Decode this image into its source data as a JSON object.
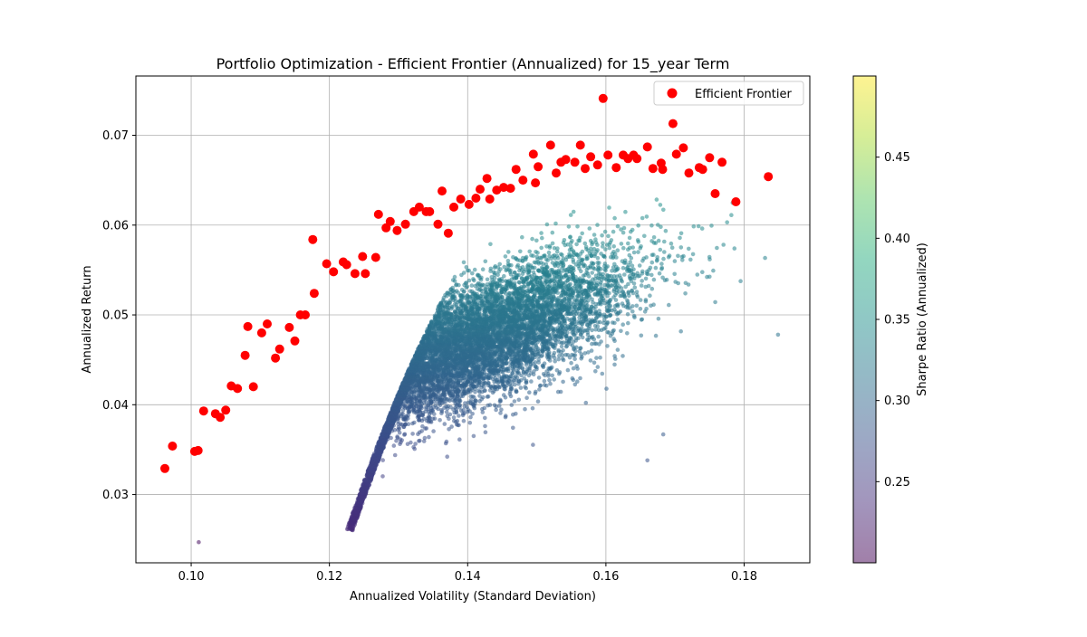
{
  "chart_data": {
    "type": "scatter",
    "title": "Portfolio Optimization - Efficient Frontier (Annualized) for 15_year Term",
    "xlabel": "Annualized Volatility (Standard Deviation)",
    "ylabel": "Annualized Return",
    "xlim": [
      0.092,
      0.1895
    ],
    "ylim": [
      0.0224,
      0.0766
    ],
    "xticks": [
      0.1,
      0.12,
      0.14,
      0.16,
      0.18
    ],
    "xtick_labels": [
      "0.10",
      "0.12",
      "0.14",
      "0.16",
      "0.18"
    ],
    "yticks": [
      0.03,
      0.04,
      0.05,
      0.06,
      0.07
    ],
    "ytick_labels": [
      "0.03",
      "0.04",
      "0.05",
      "0.06",
      "0.07"
    ],
    "grid": true,
    "legend": {
      "placement": "top-right",
      "entries": [
        "Efficient Frontier"
      ]
    },
    "colorbar": {
      "label": "Sharpe Ratio (Annualized)",
      "colormap": "viridis",
      "alpha": 0.5,
      "range": [
        0.2,
        0.5
      ],
      "ticks": [
        0.25,
        0.3,
        0.35,
        0.4,
        0.45
      ],
      "tick_labels": [
        "0.25",
        "0.30",
        "0.35",
        "0.40",
        "0.45"
      ]
    },
    "random_portfolios": {
      "description_count_approx": 30000,
      "volatility_range": [
        0.096,
        0.185
      ],
      "return_range": [
        0.0247,
        0.0702
      ],
      "outliers": [
        [
          0.1011,
          0.0247
        ],
        [
          0.1849,
          0.0478
        ],
        [
          0.1786,
          0.0574
        ],
        [
          0.166,
          0.0338
        ],
        [
          0.1683,
          0.0367
        ]
      ]
    },
    "series": [
      {
        "name": "Efficient Frontier",
        "color": "#ff0000",
        "points": [
          [
            0.0962,
            0.0329
          ],
          [
            0.0973,
            0.0354
          ],
          [
            0.1005,
            0.0348
          ],
          [
            0.101,
            0.0349
          ],
          [
            0.1018,
            0.0393
          ],
          [
            0.1035,
            0.039
          ],
          [
            0.1042,
            0.0386
          ],
          [
            0.105,
            0.0394
          ],
          [
            0.1058,
            0.0421
          ],
          [
            0.1067,
            0.0418
          ],
          [
            0.1078,
            0.0455
          ],
          [
            0.1082,
            0.0487
          ],
          [
            0.109,
            0.042
          ],
          [
            0.1102,
            0.048
          ],
          [
            0.111,
            0.049
          ],
          [
            0.1122,
            0.0452
          ],
          [
            0.1128,
            0.0462
          ],
          [
            0.1142,
            0.0486
          ],
          [
            0.115,
            0.0471
          ],
          [
            0.1158,
            0.05
          ],
          [
            0.1165,
            0.05
          ],
          [
            0.1176,
            0.0584
          ],
          [
            0.1178,
            0.0524
          ],
          [
            0.1196,
            0.0557
          ],
          [
            0.1206,
            0.0548
          ],
          [
            0.122,
            0.0559
          ],
          [
            0.1225,
            0.0556
          ],
          [
            0.1237,
            0.0546
          ],
          [
            0.1248,
            0.0565
          ],
          [
            0.1252,
            0.0546
          ],
          [
            0.1267,
            0.0564
          ],
          [
            0.1271,
            0.0612
          ],
          [
            0.1282,
            0.0597
          ],
          [
            0.1288,
            0.0604
          ],
          [
            0.1298,
            0.0594
          ],
          [
            0.131,
            0.0601
          ],
          [
            0.1322,
            0.0615
          ],
          [
            0.133,
            0.062
          ],
          [
            0.134,
            0.0615
          ],
          [
            0.1345,
            0.0615
          ],
          [
            0.1357,
            0.0601
          ],
          [
            0.1363,
            0.0638
          ],
          [
            0.1372,
            0.0591
          ],
          [
            0.138,
            0.062
          ],
          [
            0.139,
            0.0629
          ],
          [
            0.1402,
            0.0623
          ],
          [
            0.1412,
            0.063
          ],
          [
            0.1418,
            0.064
          ],
          [
            0.1428,
            0.0652
          ],
          [
            0.1432,
            0.0629
          ],
          [
            0.1442,
            0.0639
          ],
          [
            0.1452,
            0.0642
          ],
          [
            0.1462,
            0.0641
          ],
          [
            0.147,
            0.0662
          ],
          [
            0.148,
            0.065
          ],
          [
            0.1495,
            0.0679
          ],
          [
            0.1498,
            0.0647
          ],
          [
            0.1502,
            0.0665
          ],
          [
            0.152,
            0.0689
          ],
          [
            0.1528,
            0.0658
          ],
          [
            0.1535,
            0.067
          ],
          [
            0.1542,
            0.0673
          ],
          [
            0.1555,
            0.067
          ],
          [
            0.1563,
            0.0689
          ],
          [
            0.157,
            0.0663
          ],
          [
            0.1578,
            0.0676
          ],
          [
            0.1588,
            0.0667
          ],
          [
            0.1596,
            0.0741
          ],
          [
            0.1603,
            0.0678
          ],
          [
            0.1615,
            0.0664
          ],
          [
            0.1625,
            0.0678
          ],
          [
            0.1632,
            0.0674
          ],
          [
            0.164,
            0.0678
          ],
          [
            0.1645,
            0.0674
          ],
          [
            0.166,
            0.0687
          ],
          [
            0.1668,
            0.0663
          ],
          [
            0.168,
            0.0669
          ],
          [
            0.1682,
            0.0662
          ],
          [
            0.1697,
            0.0713
          ],
          [
            0.1702,
            0.0679
          ],
          [
            0.1712,
            0.0686
          ],
          [
            0.172,
            0.0658
          ],
          [
            0.1735,
            0.0664
          ],
          [
            0.174,
            0.0662
          ],
          [
            0.175,
            0.0675
          ],
          [
            0.1758,
            0.0635
          ],
          [
            0.1768,
            0.067
          ],
          [
            0.1788,
            0.0626
          ],
          [
            0.1835,
            0.0654
          ]
        ]
      }
    ]
  }
}
